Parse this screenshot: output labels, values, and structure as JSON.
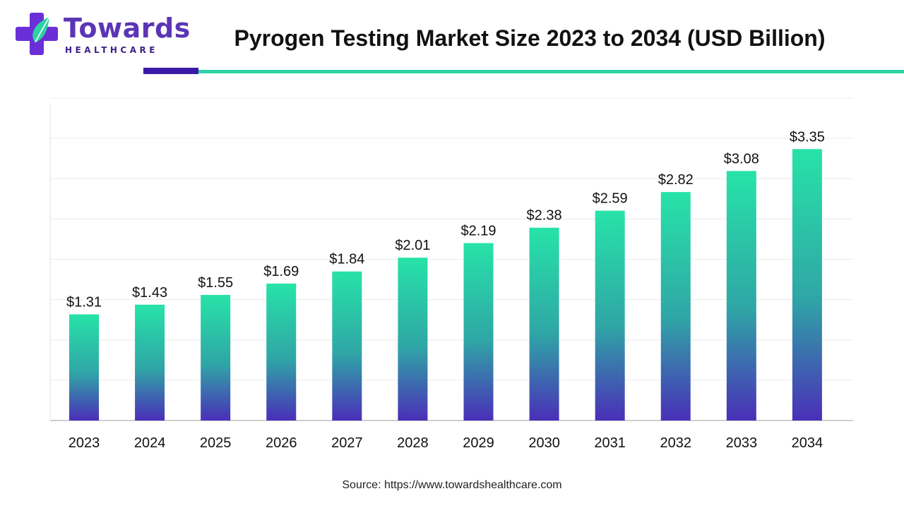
{
  "header": {
    "brand_name": "Towards",
    "brand_sub": "HEALTHCARE",
    "title": "Pyrogen Testing Market Size 2023 to 2034 (USD Billion)"
  },
  "footer": {
    "source": "Source: https://www.towardshealthcare.com"
  },
  "colors": {
    "bar_top": "#27e3a8",
    "bar_mid": "#2fa6a6",
    "bar_bottom": "#4a2fb8",
    "accent_dark": "#3a1aa6",
    "accent_teal": "#2fd3a3",
    "grid": "#ececec",
    "axis": "#bdbdbd"
  },
  "chart_data": {
    "type": "bar",
    "title": "Pyrogen Testing Market Size 2023 to 2034 (USD Billion)",
    "xlabel": "",
    "ylabel": "",
    "categories": [
      "2023",
      "2024",
      "2025",
      "2026",
      "2027",
      "2028",
      "2029",
      "2030",
      "2031",
      "2032",
      "2033",
      "2034"
    ],
    "values": [
      1.31,
      1.43,
      1.55,
      1.69,
      1.84,
      2.01,
      2.19,
      2.38,
      2.59,
      2.82,
      3.08,
      3.35
    ],
    "value_labels": [
      "$1.31",
      "$1.43",
      "$1.55",
      "$1.69",
      "$1.84",
      "$2.01",
      "$2.19",
      "$2.38",
      "$2.59",
      "$2.82",
      "$3.08",
      "$3.35"
    ],
    "ylim": [
      0,
      3.98
    ],
    "gridlines": 8,
    "grid": true,
    "legend": "none"
  }
}
